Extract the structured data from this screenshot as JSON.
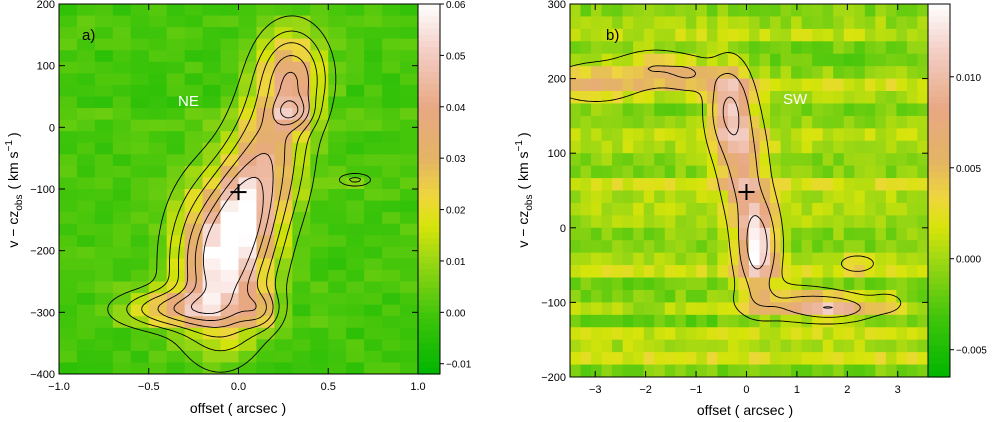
{
  "chart_data": [
    {
      "type": "heatmap",
      "panel_label": "a)",
      "region_label": "NE",
      "xlabel": "offset  ( arcsec )",
      "ylabel_main": "v − cz",
      "ylabel_sub": "obs",
      "ylabel_unit": "( km s",
      "ylabel_sup": "−1",
      "ylabel_close": ")",
      "xlim": [
        -1.0,
        1.0
      ],
      "ylim": [
        -400,
        200
      ],
      "xticks": [
        -1.0,
        -0.5,
        0.0,
        0.5,
        1.0
      ],
      "xtick_labels": [
        "−1.0",
        "−0.5",
        "0.0",
        "0.5",
        "1.0"
      ],
      "yticks": [
        -400,
        -300,
        -200,
        -100,
        0,
        100,
        200
      ],
      "ytick_labels": [
        "−400",
        "−300",
        "−200",
        "−100",
        "0",
        "100",
        "200"
      ],
      "colorbar_range": [
        -0.012,
        0.06
      ],
      "colorbar_ticks": [
        -0.01,
        0.0,
        0.01,
        0.02,
        0.03,
        0.04,
        0.05,
        0.06
      ],
      "colorbar_labels": [
        "−0.01",
        "0.00",
        "0.01",
        "0.02",
        "0.03",
        "0.04",
        "0.05",
        "0.06"
      ],
      "cross": [
        0.0,
        -105
      ],
      "blobs": [
        {
          "x": -0.1,
          "y": -220,
          "sx": 0.16,
          "sy": 80,
          "a": 0.058
        },
        {
          "x": -0.35,
          "y": -295,
          "sx": 0.2,
          "sy": 20,
          "a": 0.03
        },
        {
          "x": 0.05,
          "y": -130,
          "sx": 0.12,
          "sy": 60,
          "a": 0.035
        },
        {
          "x": 0.18,
          "y": -40,
          "sx": 0.13,
          "sy": 70,
          "a": 0.03
        },
        {
          "x": 0.3,
          "y": 80,
          "sx": 0.12,
          "sy": 50,
          "a": 0.037
        },
        {
          "x": 0.3,
          "y": 25,
          "sx": 0.07,
          "sy": 16,
          "a": 0.022
        },
        {
          "x": 0.12,
          "y": -295,
          "sx": 0.07,
          "sy": 20,
          "a": 0.02
        },
        {
          "x": 0.65,
          "y": -85,
          "sx": 0.06,
          "sy": 7,
          "a": 0.014
        }
      ],
      "contour_levels": [
        0.005,
        0.012,
        0.02,
        0.03,
        0.04,
        0.05
      ]
    },
    {
      "type": "heatmap",
      "panel_label": "b)",
      "region_label": "SW",
      "xlabel": "offset  ( arcsec )",
      "ylabel_main": "v − cz",
      "ylabel_sub": "obs",
      "ylabel_unit": "( km s",
      "ylabel_sup": "−1",
      "ylabel_close": ")",
      "xlim": [
        -3.5,
        3.6
      ],
      "ylim": [
        -200,
        300
      ],
      "xticks": [
        -3,
        -2,
        -1,
        0,
        1,
        2,
        3
      ],
      "xtick_labels": [
        "−3",
        "−2",
        "−1",
        "0",
        "1",
        "2",
        "3"
      ],
      "yticks": [
        -200,
        -100,
        0,
        100,
        200,
        300
      ],
      "ytick_labels": [
        "−200",
        "−100",
        "0",
        "100",
        "200",
        "300"
      ],
      "colorbar_range": [
        -0.0065,
        0.014
      ],
      "colorbar_ticks": [
        -0.005,
        0.0,
        0.005,
        0.01
      ],
      "colorbar_labels": [
        "−0.005",
        "0.000",
        "0.005",
        "0.010"
      ],
      "cross": [
        0.0,
        48
      ],
      "blobs": [
        {
          "x": -0.35,
          "y": 160,
          "sx": 0.28,
          "sy": 40,
          "a": 0.011
        },
        {
          "x": -0.05,
          "y": 80,
          "sx": 0.3,
          "sy": 50,
          "a": 0.0075
        },
        {
          "x": 0.22,
          "y": -25,
          "sx": 0.26,
          "sy": 42,
          "a": 0.014
        },
        {
          "x": 0.9,
          "y": -100,
          "sx": 0.7,
          "sy": 16,
          "a": 0.0055
        },
        {
          "x": 1.75,
          "y": -108,
          "sx": 0.5,
          "sy": 11,
          "a": 0.0085
        },
        {
          "x": -3.0,
          "y": 195,
          "sx": 0.6,
          "sy": 18,
          "a": 0.0055
        },
        {
          "x": -1.8,
          "y": 215,
          "sx": 0.5,
          "sy": 16,
          "a": 0.0055
        },
        {
          "x": -1.1,
          "y": 205,
          "sx": 0.3,
          "sy": 14,
          "a": 0.0045
        },
        {
          "x": 2.2,
          "y": -48,
          "sx": 0.25,
          "sy": 8,
          "a": 0.0045
        },
        {
          "x": 2.8,
          "y": -100,
          "sx": 0.25,
          "sy": 10,
          "a": 0.003
        }
      ],
      "contour_levels": [
        0.002,
        0.006,
        0.011
      ]
    }
  ]
}
